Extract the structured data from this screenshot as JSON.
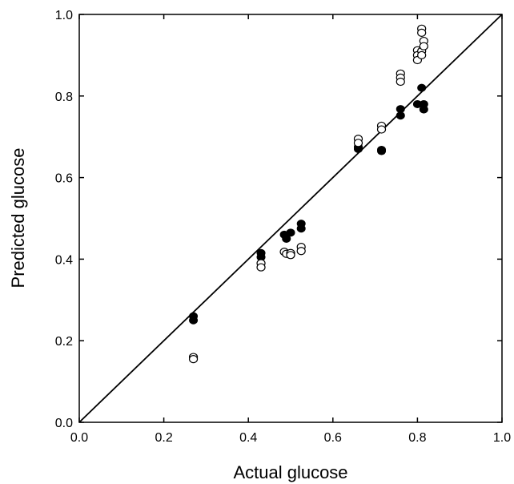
{
  "chart_data": {
    "type": "scatter",
    "title": "",
    "xlabel": "Actual glucose",
    "ylabel": "Predicted glucose",
    "xlim": [
      0.0,
      1.0
    ],
    "ylim": [
      0.0,
      1.0
    ],
    "xticks": [
      "0.0",
      "0.2",
      "0.4",
      "0.6",
      "0.8",
      "1.0"
    ],
    "yticks": [
      "0.0",
      "0.2",
      "0.4",
      "0.6",
      "0.8",
      "1.0"
    ],
    "grid": false,
    "legend": "none",
    "marker_color": "#000000",
    "series": [
      {
        "marker": "filled-circle",
        "points": [
          [
            0.27,
            0.26
          ],
          [
            0.27,
            0.25
          ],
          [
            0.43,
            0.415
          ],
          [
            0.43,
            0.405
          ],
          [
            0.485,
            0.46
          ],
          [
            0.49,
            0.45
          ],
          [
            0.5,
            0.465
          ],
          [
            0.525,
            0.487
          ],
          [
            0.525,
            0.475
          ],
          [
            0.66,
            0.675
          ],
          [
            0.66,
            0.67
          ],
          [
            0.715,
            0.668
          ],
          [
            0.715,
            0.665
          ],
          [
            0.76,
            0.768
          ],
          [
            0.76,
            0.752
          ],
          [
            0.8,
            0.78
          ],
          [
            0.81,
            0.82
          ],
          [
            0.815,
            0.78
          ],
          [
            0.815,
            0.767
          ]
        ]
      },
      {
        "marker": "open-circle",
        "points": [
          [
            0.27,
            0.16
          ],
          [
            0.27,
            0.155
          ],
          [
            0.43,
            0.39
          ],
          [
            0.43,
            0.38
          ],
          [
            0.485,
            0.418
          ],
          [
            0.49,
            0.413
          ],
          [
            0.5,
            0.415
          ],
          [
            0.5,
            0.41
          ],
          [
            0.525,
            0.43
          ],
          [
            0.525,
            0.42
          ],
          [
            0.66,
            0.695
          ],
          [
            0.66,
            0.685
          ],
          [
            0.715,
            0.727
          ],
          [
            0.715,
            0.718
          ],
          [
            0.76,
            0.855
          ],
          [
            0.76,
            0.845
          ],
          [
            0.76,
            0.835
          ],
          [
            0.8,
            0.912
          ],
          [
            0.8,
            0.9
          ],
          [
            0.8,
            0.888
          ],
          [
            0.81,
            0.965
          ],
          [
            0.81,
            0.955
          ],
          [
            0.81,
            0.91
          ],
          [
            0.81,
            0.9
          ],
          [
            0.815,
            0.935
          ],
          [
            0.815,
            0.922
          ]
        ]
      }
    ],
    "reference_line": [
      [
        0.0,
        0.0
      ],
      [
        1.0,
        1.0
      ]
    ]
  }
}
